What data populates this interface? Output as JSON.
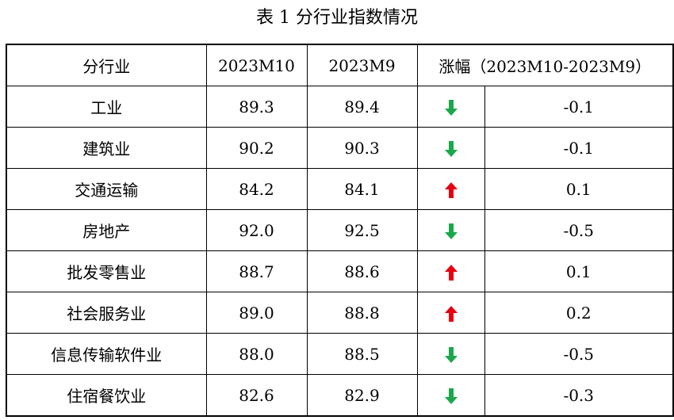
{
  "caption": "表 1 分行业指数情况",
  "columns": {
    "industry": "分行业",
    "current": "2023M10",
    "previous": "2023M9",
    "change": "涨幅（2023M10-2023M9）"
  },
  "colors": {
    "up": "#e60012",
    "down": "#1aa84a"
  },
  "rows": [
    {
      "industry": "工业",
      "current": "89.3",
      "previous": "89.4",
      "direction": "down",
      "arrow_icon": "arrow-down-icon",
      "change": "-0.1"
    },
    {
      "industry": "建筑业",
      "current": "90.2",
      "previous": "90.3",
      "direction": "down",
      "arrow_icon": "arrow-down-icon",
      "change": "-0.1"
    },
    {
      "industry": "交通运输",
      "current": "84.2",
      "previous": "84.1",
      "direction": "up",
      "arrow_icon": "arrow-up-icon",
      "change": "0.1"
    },
    {
      "industry": "房地产",
      "current": "92.0",
      "previous": "92.5",
      "direction": "down",
      "arrow_icon": "arrow-down-icon",
      "change": "-0.5"
    },
    {
      "industry": "批发零售业",
      "current": "88.7",
      "previous": "88.6",
      "direction": "up",
      "arrow_icon": "arrow-up-icon",
      "change": "0.1"
    },
    {
      "industry": "社会服务业",
      "current": "89.0",
      "previous": "88.8",
      "direction": "up",
      "arrow_icon": "arrow-up-icon",
      "change": "0.2"
    },
    {
      "industry": "信息传输软件业",
      "current": "88.0",
      "previous": "88.5",
      "direction": "down",
      "arrow_icon": "arrow-down-icon",
      "change": "-0.5"
    },
    {
      "industry": "住宿餐饮业",
      "current": "82.6",
      "previous": "82.9",
      "direction": "down",
      "arrow_icon": "arrow-down-icon",
      "change": "-0.3"
    }
  ]
}
